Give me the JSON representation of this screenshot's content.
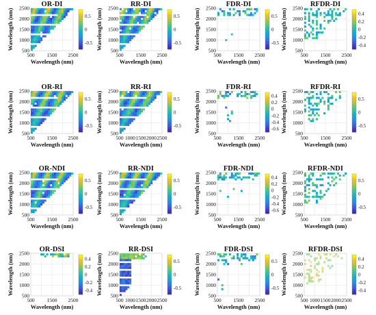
{
  "chart_data": [
    {
      "type": "heatmap",
      "title": "OR-DI",
      "xlabel": "Wavelength (nm)",
      "ylabel": "Wavelength (nm)",
      "xticks": [
        "500",
        "1500",
        "2500"
      ],
      "yticks": [
        "500",
        "1000",
        "1500",
        "2000",
        "2500"
      ],
      "colorbar": {
        "range": [
          -0.75,
          0.75
        ],
        "ticks": [
          "0.5",
          "0",
          "-0.5"
        ]
      },
      "pattern": "dense"
    },
    {
      "type": "heatmap",
      "title": "RR-DI",
      "xlabel": "Wavelength (nm)",
      "ylabel": "Wavelength (nm)",
      "xticks": [
        "500",
        "1500",
        "2500"
      ],
      "yticks": [
        "500",
        "1000",
        "1500",
        "2000",
        "2500"
      ],
      "colorbar": {
        "range": [
          -0.75,
          0.75
        ],
        "ticks": [
          "0.5",
          "0",
          "-0.5"
        ]
      },
      "pattern": "dense"
    },
    {
      "type": "heatmap",
      "title": "FDR-DI",
      "xlabel": "Wavelength (nm)",
      "ylabel": "Wavelength (nm)",
      "xticks": [
        "500",
        "1500",
        "2500"
      ],
      "yticks": [
        "500",
        "1000",
        "1500",
        "2000",
        "2500"
      ],
      "colorbar": {
        "range": [
          -0.75,
          0.75
        ],
        "ticks": [
          "0.5",
          "0",
          "-0.5"
        ]
      },
      "pattern": "sparse"
    },
    {
      "type": "heatmap",
      "title": "RFDR-DI",
      "xlabel": "Wavelength (nm)",
      "ylabel": "Wavelength (nm)",
      "xticks": [
        "500",
        "1500",
        "2500"
      ],
      "yticks": [
        "500",
        "1000",
        "1500",
        "2000",
        "2500"
      ],
      "colorbar": {
        "range": [
          -0.5,
          0.5
        ],
        "ticks": [
          "0.4",
          "0.2",
          "0",
          "-0.2",
          "-0.4"
        ]
      },
      "pattern": "grid"
    },
    {
      "type": "heatmap",
      "title": "OR-RI",
      "xlabel": "Wavelength (nm)",
      "ylabel": "Wavelength (nm)",
      "xticks": [
        "500",
        "1500",
        "2500"
      ],
      "yticks": [
        "500",
        "1000",
        "1500",
        "2000",
        "2500"
      ],
      "colorbar": {
        "range": [
          -0.75,
          0.75
        ],
        "ticks": [
          "0.5",
          "0",
          "-0.5"
        ]
      },
      "pattern": "dense"
    },
    {
      "type": "heatmap",
      "title": "RR-RI",
      "xlabel": "Wavelength (nm)",
      "ylabel": "Wavelength (nm)",
      "xticks": [
        "500",
        "1000",
        "1500",
        "2000",
        "2500"
      ],
      "yticks": [
        "500",
        "1000",
        "1500",
        "2000",
        "2500"
      ],
      "colorbar": {
        "range": [
          -0.75,
          0.75
        ],
        "ticks": [
          "0.5",
          "0",
          "-0.5"
        ]
      },
      "pattern": "dense"
    },
    {
      "type": "heatmap",
      "title": "FDR-RI",
      "xlabel": "Wavelength (nm)",
      "ylabel": "Wavelength (nm)",
      "xticks": [
        "500",
        "1500",
        "2500"
      ],
      "yticks": [
        "500",
        "1000",
        "1500",
        "2000",
        "2500"
      ],
      "colorbar": {
        "range": [
          -0.7,
          0.5
        ],
        "ticks": [
          "0.4",
          "0.2",
          "0",
          "-0.2",
          "-0.4",
          "-0.6"
        ]
      },
      "pattern": "sparse"
    },
    {
      "type": "heatmap",
      "title": "RFDR-RI",
      "xlabel": "Wavelength (nm)",
      "ylabel": "Wavelength (nm)",
      "xticks": [
        "500",
        "1500",
        "2500"
      ],
      "yticks": [
        "500",
        "1000",
        "1500",
        "2000",
        "2500"
      ],
      "colorbar": {
        "range": [
          -0.75,
          0.75
        ],
        "ticks": [
          "0.5",
          "0",
          "-0.5"
        ]
      },
      "pattern": "grid"
    },
    {
      "type": "heatmap",
      "title": "OR-NDI",
      "xlabel": "Wavelength (nm)",
      "ylabel": "Wavelength (nm)",
      "xticks": [
        "500",
        "1500",
        "2500"
      ],
      "yticks": [
        "500",
        "1000",
        "1500",
        "2000",
        "2500"
      ],
      "colorbar": {
        "range": [
          -0.75,
          0.75
        ],
        "ticks": [
          "0.5",
          "0",
          "-0.5"
        ]
      },
      "pattern": "dense"
    },
    {
      "type": "heatmap",
      "title": "RR-NDI",
      "xlabel": "Wavelength (nm)",
      "ylabel": "Wavelength (nm)",
      "xticks": [
        "500",
        "1500",
        "2500"
      ],
      "yticks": [
        "500",
        "1000",
        "1500",
        "2000",
        "2500"
      ],
      "colorbar": {
        "range": [
          -0.75,
          0.75
        ],
        "ticks": [
          "0.5",
          "0",
          "-0.5"
        ]
      },
      "pattern": "dense"
    },
    {
      "type": "heatmap",
      "title": "FDR-NDI",
      "xlabel": "Wavelength (nm)",
      "ylabel": "Wavelength (nm)",
      "xticks": [
        "500",
        "1500",
        "2500"
      ],
      "yticks": [
        "500",
        "1000",
        "1500",
        "2000",
        "2500"
      ],
      "colorbar": {
        "range": [
          -0.7,
          0.5
        ],
        "ticks": [
          "0.4",
          "0.2",
          "0",
          "-0.2",
          "-0.4",
          "-0.6"
        ]
      },
      "pattern": "sparse"
    },
    {
      "type": "heatmap",
      "title": "RFDR-NDI",
      "xlabel": "Wavelength (nm)",
      "ylabel": "Wavelength (nm)",
      "xticks": [
        "500",
        "1500",
        "2500"
      ],
      "yticks": [
        "500",
        "1000",
        "1500",
        "2000",
        "2500"
      ],
      "colorbar": {
        "range": [
          -0.75,
          0.75
        ],
        "ticks": [
          "0.5",
          "0",
          "-0.5"
        ]
      },
      "pattern": "grid"
    },
    {
      "type": "heatmap",
      "title": "OR-DSI",
      "xlabel": "Wavelength (nm)",
      "ylabel": "Wavelength (nm)",
      "xticks": [
        "500",
        "1500",
        "2500"
      ],
      "yticks": [
        "500",
        "1000",
        "1500",
        "2000",
        "2500"
      ],
      "colorbar": {
        "range": [
          -0.5,
          0.5
        ],
        "ticks": [
          "0.4",
          "0.2",
          "0",
          "-0.2",
          "-0.4"
        ]
      },
      "pattern": "corner"
    },
    {
      "type": "heatmap",
      "title": "RR-DSI",
      "xlabel": "Wavelength (nm)",
      "ylabel": "Wavelength (nm)",
      "xticks": [
        "500",
        "1000",
        "1500",
        "2000",
        "2500"
      ],
      "yticks": [
        "500",
        "1000",
        "1500",
        "2000",
        "2500"
      ],
      "colorbar": {
        "range": [
          -0.75,
          0.75
        ],
        "ticks": [
          "0.5",
          "0",
          "-0.5"
        ]
      },
      "pattern": "left"
    },
    {
      "type": "heatmap",
      "title": "FDR-DSI",
      "xlabel": "Wavelength (nm)",
      "ylabel": "Wavelength (nm)",
      "xticks": [
        "500",
        "1500",
        "2500"
      ],
      "yticks": [
        "500",
        "1000",
        "1500",
        "2000",
        "2500"
      ],
      "colorbar": {
        "range": [
          -0.75,
          0.75
        ],
        "ticks": [
          "0.5",
          "0",
          "-0.5"
        ]
      },
      "pattern": "sparse"
    },
    {
      "type": "heatmap",
      "title": "RFDR-DSI",
      "xlabel": "Wavelength (nm)",
      "ylabel": "Wavelength (nm)",
      "xticks": [
        "500",
        "1000",
        "1500",
        "2000",
        "2500"
      ],
      "yticks": [
        "500",
        "1000",
        "1500",
        "2000",
        "2500"
      ],
      "colorbar": {
        "range": [
          -0.5,
          0.5
        ],
        "ticks": [
          "0.4",
          "0.2",
          "0",
          "-0.2",
          "-0.4"
        ]
      },
      "pattern": "faint"
    }
  ]
}
